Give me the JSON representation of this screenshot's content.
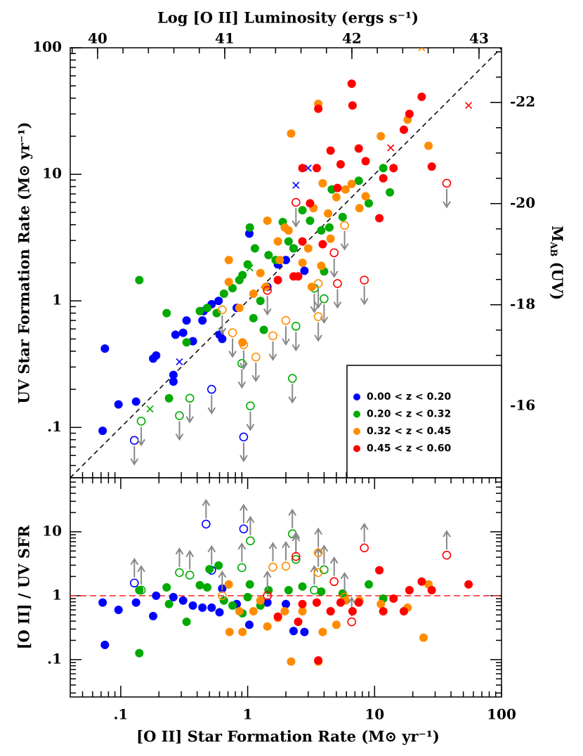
{
  "chart_data": [
    {
      "type": "scatter",
      "x2label": "Log [O II] Luminosity (ergs s⁻¹)",
      "ylabel": "UV Star Formation Rate (M⊙ yr⁻¹)",
      "y2label": [
        "M",
        "AB",
        " (UV)"
      ],
      "log": true,
      "diagonal": true,
      "legend": "lower right",
      "xlim": [
        0.04,
        100
      ],
      "ylim": [
        0.04,
        100
      ],
      "yticks": [
        {
          "value": 0.1,
          "label": ".1"
        },
        1,
        10,
        100
      ],
      "x2lim": [
        39.785,
        43.177
      ],
      "x2ticks": [
        40,
        41,
        42,
        43
      ],
      "y2lim": [
        -14.58,
        -23.08
      ],
      "y2ticks": [
        -22,
        -20,
        -18,
        -16
      ],
      "series": [
        {
          "name": "0.00 < z < 0.20",
          "color": "#0000ff",
          "x": [
            0.075,
            0.072,
            0.096,
            0.132,
            0.18,
            0.19,
            0.26,
            0.27,
            0.31,
            0.26,
            0.37,
            0.33,
            0.44,
            0.45,
            0.52,
            0.59,
            0.6,
            0.63,
            0.82,
            1.03,
            1.43,
            1.73,
            2.0,
            2.3,
            2.8
          ],
          "y": [
            0.42,
            0.094,
            0.152,
            0.16,
            0.35,
            0.37,
            0.26,
            0.54,
            0.56,
            0.23,
            0.48,
            0.7,
            0.7,
            0.83,
            0.94,
            1.0,
            0.54,
            0.5,
            0.88,
            3.4,
            1.29,
            1.94,
            2.1,
            2.6,
            1.73
          ],
          "limit_x": [
            0.128,
            0.52,
            0.93
          ],
          "limit_y": [
            0.079,
            0.2,
            0.084
          ],
          "cross_x": [
            0.29,
            2.4,
            3.0
          ],
          "cross_y": [
            0.33,
            8.2,
            11.2
          ]
        },
        {
          "name": "0.20 < z < 0.32",
          "color": "#00aa00",
          "x": [
            0.14,
            0.23,
            0.33,
            0.24,
            0.42,
            0.48,
            0.57,
            0.65,
            0.76,
            0.86,
            0.91,
            1.0,
            1.04,
            1.14,
            1.11,
            1.26,
            1.34,
            1.46,
            1.66,
            1.89,
            2.1,
            2.3,
            2.7,
            3.1,
            3.8,
            4.4,
            4.6,
            5.6,
            7.5,
            9.0,
            11.7,
            13.2,
            4.0
          ],
          "y": [
            1.46,
            0.8,
            0.47,
            0.17,
            0.83,
            0.88,
            0.8,
            1.14,
            1.26,
            1.46,
            1.6,
            1.94,
            3.8,
            2.6,
            0.73,
            1.0,
            0.59,
            2.3,
            2.1,
            4.2,
            2.95,
            2.6,
            5.2,
            4.3,
            3.6,
            3.8,
            7.6,
            4.6,
            8.9,
            5.9,
            11.2,
            7.2,
            1.71
          ],
          "limit_x": [
            0.145,
            0.29,
            0.35,
            0.9,
            1.05,
            2.25,
            2.4,
            3.35,
            4.0
          ],
          "limit_y": [
            0.112,
            0.124,
            0.17,
            0.32,
            0.148,
            0.244,
            0.63,
            1.26,
            1.04
          ],
          "cross_x": [
            0.17,
            1.04
          ],
          "cross_y": [
            0.14,
            1.82
          ]
        },
        {
          "name": "0.32 < z < 0.45",
          "color": "#ff8c00",
          "x": [
            0.71,
            0.71,
            0.86,
            0.91,
            1.11,
            1.26,
            1.39,
            1.43,
            1.73,
            1.96,
            2.1,
            2.2,
            2.7,
            3.0,
            3.3,
            3.6,
            3.9,
            4.3,
            4.5,
            5.0,
            5.9,
            6.6,
            7.6,
            8.5,
            11.2,
            18.2,
            26.6,
            3.2,
            3.8,
            1.79
          ],
          "y": [
            2.1,
            1.41,
            0.88,
            0.47,
            1.14,
            1.66,
            1.29,
            4.3,
            2.95,
            3.8,
            3.6,
            21,
            2.0,
            2.6,
            5.4,
            36,
            8.5,
            4.9,
            3.1,
            6.6,
            7.6,
            8.4,
            5.4,
            6.7,
            20,
            27,
            16.8,
            1.29,
            1.89,
            2.1
          ],
          "limit_x": [
            0.63,
            0.76,
            0.93,
            1.16,
            1.58,
            2.0,
            3.6,
            3.6,
            5.8
          ],
          "limit_y": [
            0.85,
            0.56,
            0.45,
            0.36,
            0.53,
            0.7,
            0.75,
            1.37,
            3.95
          ],
          "cross_x": [
            23.5
          ],
          "cross_y": [
            100
          ]
        },
        {
          "name": "0.45 < z < 0.60",
          "color": "#ff0000",
          "x": [
            3.6,
            3.5,
            4.5,
            5.1,
            5.4,
            6.7,
            6.6,
            7.5,
            8.5,
            11.7,
            14.1,
            17,
            18.8,
            23.5,
            28.2,
            10.9,
            2.7,
            3.1,
            3.9,
            2.5,
            1.73,
            2.7,
            2.3
          ],
          "y": [
            33,
            11.2,
            15.4,
            7.8,
            12,
            35,
            52,
            16,
            12.7,
            9.3,
            11.2,
            22.5,
            30,
            41,
            11.5,
            4.5,
            11.2,
            5.9,
            2.8,
            1.56,
            1.46,
            2.95,
            1.56
          ],
          "limit_x": [
            1.43,
            2.4,
            4.8,
            5.1,
            8.3,
            37
          ],
          "limit_y": [
            1.21,
            6.0,
            2.4,
            1.37,
            1.46,
            8.5
          ],
          "cross_x": [
            13.4,
            55
          ],
          "cross_y": [
            16.2,
            35
          ]
        }
      ]
    },
    {
      "type": "scatter",
      "xlabel": "[O II] Star Formation Rate (M⊙ yr⁻¹)",
      "ylabel": "[O II] / UV SFR",
      "log": true,
      "xlim": [
        0.04,
        100
      ],
      "ylim": [
        0.026,
        70
      ],
      "xticks": [
        {
          "value": 0.1,
          "label": ".1"
        },
        1,
        10,
        100
      ],
      "yticks": [
        {
          "value": 0.1,
          "label": ".1"
        },
        1,
        10
      ],
      "hline": {
        "value": 1,
        "color": "#ff2020"
      },
      "series": [
        {
          "color": "#0000ff",
          "x": [
            0.072,
            0.075,
            0.096,
            0.132,
            0.18,
            0.19,
            0.26,
            0.31,
            0.37,
            0.44,
            0.52,
            0.6,
            0.63,
            0.82,
            1.03,
            1.43,
            2.0,
            2.3,
            2.8
          ],
          "y": [
            0.78,
            0.17,
            0.6,
            0.78,
            0.48,
            1.0,
            0.95,
            0.84,
            0.7,
            0.65,
            0.65,
            0.55,
            1.29,
            0.74,
            0.35,
            0.78,
            0.74,
            0.28,
            0.27
          ],
          "limit_x": [
            0.128,
            0.47,
            0.52,
            0.93
          ],
          "limit_y": [
            1.58,
            13.2,
            2.5,
            11.1
          ]
        },
        {
          "color": "#00aa00",
          "x": [
            0.14,
            0.14,
            0.23,
            0.24,
            0.33,
            0.42,
            0.48,
            0.65,
            0.76,
            0.91,
            1.0,
            1.04,
            1.26,
            1.46,
            2.1,
            2.7,
            3.8,
            5.6,
            9.0,
            11.7,
            0.5,
            0.59
          ],
          "y": [
            0.126,
            1.22,
            1.35,
            0.74,
            0.39,
            1.46,
            1.35,
            0.84,
            0.7,
            0.53,
            0.95,
            1.5,
            0.7,
            1.22,
            1.22,
            1.39,
            1.16,
            1.08,
            1.5,
            0.9,
            2.6,
            2.97
          ],
          "limit_x": [
            0.145,
            0.29,
            0.35,
            0.9,
            1.05,
            2.25,
            2.4,
            3.35,
            4.0
          ],
          "limit_y": [
            1.22,
            2.3,
            2.1,
            2.75,
            7.2,
            9.3,
            3.7,
            1.22,
            2.55
          ]
        },
        {
          "color": "#ff8c00",
          "x": [
            0.71,
            0.86,
            0.91,
            1.11,
            1.26,
            1.43,
            1.73,
            1.96,
            2.2,
            2.7,
            3.6,
            3.9,
            4.5,
            5.0,
            5.9,
            7.6,
            11.2,
            18.2,
            26.6,
            24.3,
            0.72
          ],
          "y": [
            1.5,
            0.57,
            0.27,
            0.57,
            0.84,
            0.33,
            0.45,
            0.57,
            0.093,
            0.57,
            0.093,
            0.27,
            0.57,
            0.35,
            0.84,
            0.84,
            0.74,
            0.65,
            1.5,
            0.22,
            0.27
          ],
          "limit_x": [
            0.63,
            1.58,
            2.0,
            3.6,
            3.6,
            5.8
          ],
          "limit_y": [
            1.0,
            2.8,
            2.9,
            2.3,
            4.7,
            0.95
          ]
        },
        {
          "color": "#ff0000",
          "x": [
            3.6,
            3.5,
            4.5,
            5.4,
            6.7,
            7.5,
            10.9,
            11.7,
            14.1,
            17,
            18.8,
            23.5,
            28.2,
            55,
            2.7,
            1.73,
            2.5
          ],
          "y": [
            0.097,
            0.78,
            0.57,
            0.78,
            0.57,
            0.78,
            2.5,
            0.57,
            0.9,
            0.57,
            1.22,
            1.66,
            1.22,
            1.5,
            0.74,
            0.47,
            0.39
          ],
          "limit_x": [
            1.43,
            2.4,
            4.8,
            8.3,
            37,
            6.6
          ],
          "limit_y": [
            1.0,
            4.1,
            1.66,
            5.6,
            4.3,
            0.39
          ]
        }
      ]
    }
  ]
}
